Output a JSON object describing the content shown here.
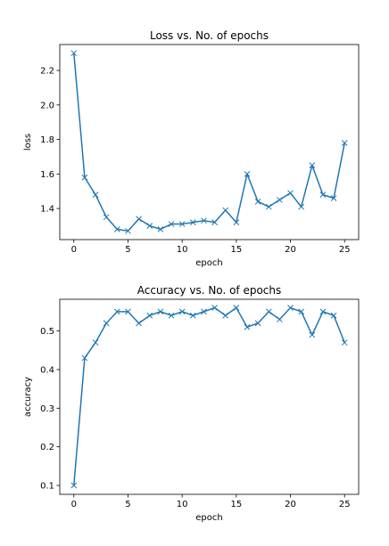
{
  "chart_data": [
    {
      "type": "line",
      "title": "Loss vs. No. of epochs",
      "xlabel": "epoch",
      "ylabel": "loss",
      "xlim": [
        -1.3,
        26.3
      ],
      "ylim": [
        1.22,
        2.35
      ],
      "xticks": [
        0,
        5,
        10,
        15,
        20,
        25
      ],
      "yticks": [
        1.4,
        1.6,
        1.8,
        2.0,
        2.2
      ],
      "ytick_labels": [
        "1.4",
        "1.6",
        "1.8",
        "2.0",
        "2.2"
      ],
      "grid": false,
      "line_color": "#1f77b4",
      "marker": "x",
      "x": [
        0,
        1,
        2,
        3,
        4,
        5,
        6,
        7,
        8,
        9,
        10,
        11,
        12,
        13,
        14,
        15,
        16,
        17,
        18,
        19,
        20,
        21,
        22,
        23,
        24,
        25
      ],
      "values": [
        2.3,
        1.58,
        1.48,
        1.35,
        1.28,
        1.27,
        1.34,
        1.3,
        1.28,
        1.31,
        1.31,
        1.32,
        1.33,
        1.32,
        1.39,
        1.32,
        1.6,
        1.44,
        1.41,
        1.45,
        1.49,
        1.41,
        1.65,
        1.48,
        1.46,
        1.78
      ]
    },
    {
      "type": "line",
      "title": "Accuracy vs. No. of epochs",
      "xlabel": "epoch",
      "ylabel": "accuracy",
      "xlim": [
        -1.3,
        26.3
      ],
      "ylim": [
        0.077,
        0.582
      ],
      "xticks": [
        0,
        5,
        10,
        15,
        20,
        25
      ],
      "yticks": [
        0.1,
        0.2,
        0.3,
        0.4,
        0.5
      ],
      "ytick_labels": [
        "0.1",
        "0.2",
        "0.3",
        "0.4",
        "0.5"
      ],
      "grid": false,
      "line_color": "#1f77b4",
      "marker": "x",
      "x": [
        0,
        1,
        2,
        3,
        4,
        5,
        6,
        7,
        8,
        9,
        10,
        11,
        12,
        13,
        14,
        15,
        16,
        17,
        18,
        19,
        20,
        21,
        22,
        23,
        24,
        25
      ],
      "values": [
        0.1,
        0.43,
        0.47,
        0.52,
        0.55,
        0.55,
        0.52,
        0.54,
        0.55,
        0.54,
        0.55,
        0.54,
        0.55,
        0.56,
        0.54,
        0.56,
        0.51,
        0.52,
        0.55,
        0.53,
        0.56,
        0.55,
        0.49,
        0.55,
        0.54,
        0.47
      ]
    }
  ]
}
